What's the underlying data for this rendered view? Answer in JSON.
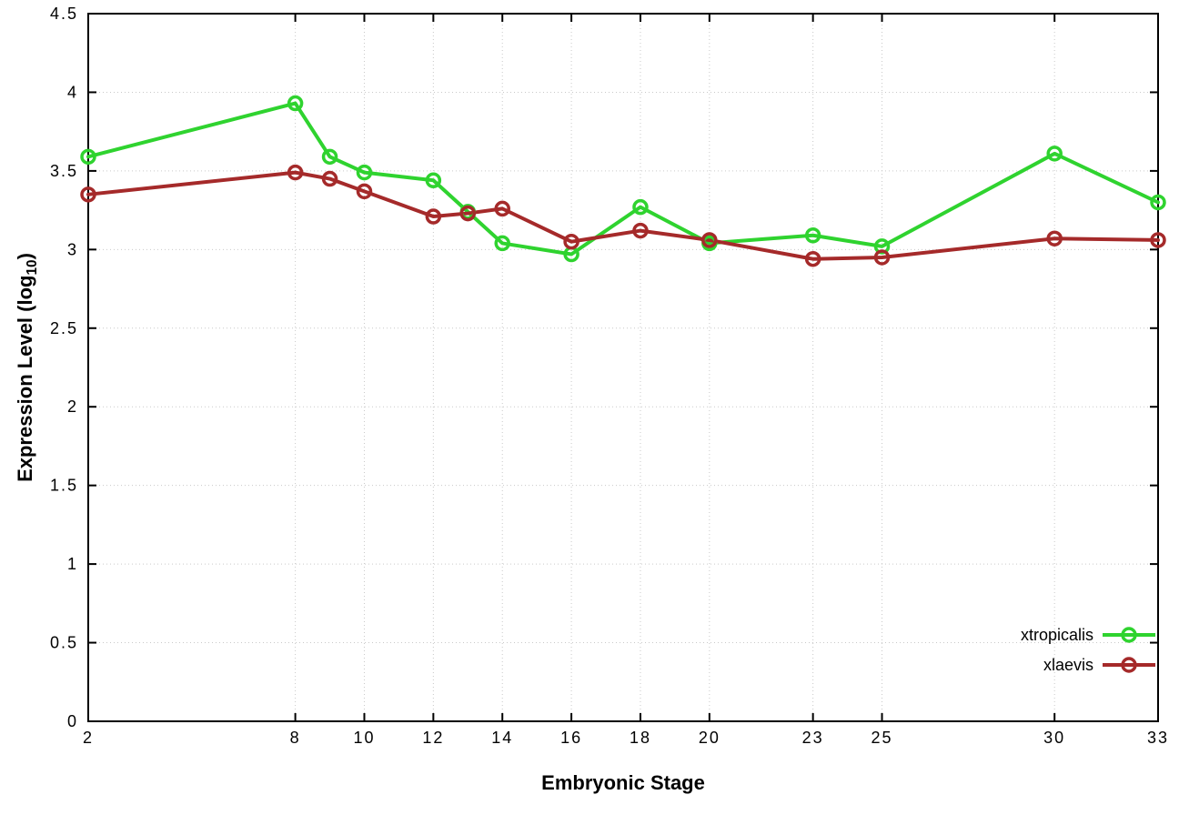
{
  "figure": {
    "background": "#ffffff",
    "border_color": "#000000",
    "grid_color": "#c9c9c9"
  },
  "chart_data": {
    "type": "line",
    "title": "",
    "xlabel": "Embryonic Stage",
    "ylabel": "Expression Level (log10)",
    "ylabel_parts": {
      "main": "Expression Level (log",
      "sub": "10",
      "close": ")"
    },
    "xlim": [
      2,
      33
    ],
    "ylim": [
      0,
      4.5
    ],
    "xticks": [
      2,
      8,
      10,
      12,
      14,
      16,
      18,
      20,
      23,
      25,
      30,
      33
    ],
    "xtick_labels": [
      "2",
      "8",
      "10",
      "12",
      "14",
      "16",
      "18",
      "20",
      "23",
      "25",
      "30",
      "33"
    ],
    "yticks": [
      0,
      0.5,
      1,
      1.5,
      2,
      2.5,
      3,
      3.5,
      4,
      4.5
    ],
    "ytick_labels": [
      "0",
      "0.5",
      "1",
      "1.5",
      "2",
      "2.5",
      "3",
      "3.5",
      "4",
      "4.5"
    ],
    "grid": true,
    "legend_position": "bottom-right",
    "x": [
      2,
      8,
      9,
      10,
      12,
      13,
      14,
      16,
      18,
      20,
      23,
      25,
      30,
      33
    ],
    "series": [
      {
        "name": "xtropicalis",
        "color": "#2fd32f",
        "marker": "open-circle",
        "values": [
          3.59,
          3.93,
          3.59,
          3.49,
          3.44,
          3.24,
          3.04,
          2.97,
          3.27,
          3.04,
          3.09,
          3.02,
          3.61,
          3.3
        ]
      },
      {
        "name": "xlaevis",
        "color": "#a52a2a",
        "marker": "open-circle",
        "values": [
          3.35,
          3.49,
          3.45,
          3.37,
          3.21,
          3.23,
          3.26,
          3.05,
          3.12,
          3.06,
          2.94,
          2.95,
          3.07,
          3.06
        ]
      }
    ]
  }
}
